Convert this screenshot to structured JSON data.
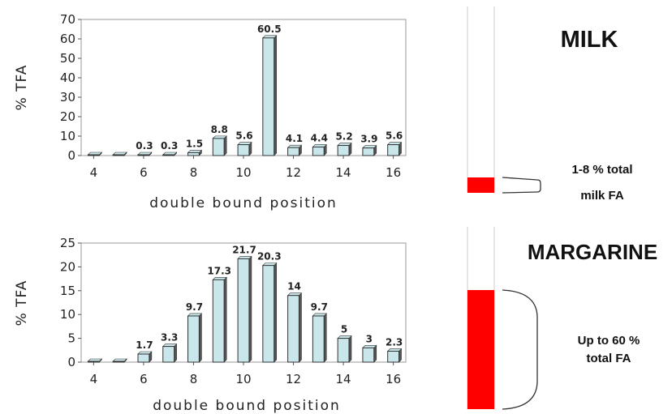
{
  "chart_data": [
    {
      "type": "bar",
      "title": "",
      "xlabel": "double bound position",
      "ylabel": "% TFA",
      "ylim": [
        0,
        70
      ],
      "yticks": [
        0,
        10,
        20,
        30,
        40,
        50,
        60,
        70
      ],
      "xlim": [
        3.5,
        16.5
      ],
      "xticks": [
        4,
        6,
        8,
        10,
        12,
        14,
        16
      ],
      "grid": false,
      "series": [
        {
          "x": [
            4,
            5,
            6,
            7,
            8,
            9,
            10,
            11,
            12,
            13,
            14,
            15,
            16
          ],
          "values": [
            0,
            0,
            0.3,
            0.3,
            1.5,
            8.8,
            5.6,
            60.5,
            4.1,
            4.4,
            5.2,
            3.9,
            5.6
          ],
          "labels": [
            "",
            "",
            "0.3",
            "0.3",
            "1.5",
            "8.8",
            "5.6",
            "60.5",
            "4.1",
            "4.4",
            "5.2",
            "3.9",
            "5.6"
          ]
        }
      ]
    },
    {
      "type": "bar",
      "title": "",
      "xlabel": "double bound position",
      "ylabel": "% TFA",
      "ylim": [
        0,
        25
      ],
      "yticks": [
        0,
        5,
        10,
        15,
        20,
        25
      ],
      "xlim": [
        3.5,
        16.5
      ],
      "xticks": [
        4,
        6,
        8,
        10,
        12,
        14,
        16
      ],
      "grid": false,
      "series": [
        {
          "x": [
            4,
            5,
            6,
            7,
            8,
            9,
            10,
            11,
            12,
            13,
            14,
            15,
            16
          ],
          "values": [
            0,
            0,
            1.7,
            3.3,
            9.7,
            17.3,
            21.7,
            20.3,
            14,
            9.7,
            5,
            3,
            2.3
          ],
          "labels": [
            "",
            "",
            "1.7",
            "3.3",
            "9.7",
            "17.3",
            "21.7",
            "20.3",
            "14",
            "9.7",
            "5",
            "3",
            "2.3"
          ]
        }
      ]
    }
  ],
  "colors": {
    "bar_fill": "#c9e6ea",
    "bar_edge": "#333333",
    "bar_shade": "#555555",
    "indicator_red": "#ff0000",
    "indicator_track": "#dddddd"
  },
  "panels": [
    {
      "label": "MILK",
      "note_line1": "1-8 % total",
      "note_line2": "milk FA",
      "fill_fraction": 0.08
    },
    {
      "label": "MARGARINE",
      "note_line1": "Up to 60 %",
      "note_line2": "total FA",
      "fill_fraction": 0.6
    }
  ]
}
